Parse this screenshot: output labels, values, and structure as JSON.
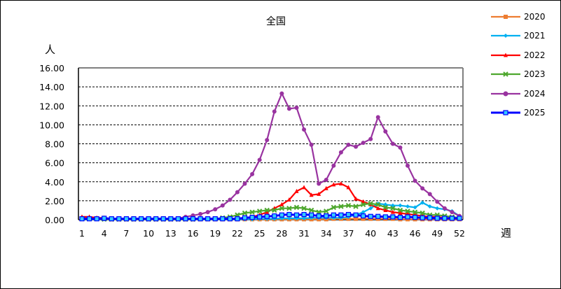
{
  "chart_data": {
    "type": "line",
    "title": "全国",
    "xlabel": "週",
    "ylabel": "人",
    "ylim": [
      0,
      16
    ],
    "yticks": [
      "0.00",
      "2.00",
      "4.00",
      "6.00",
      "8.00",
      "10.00",
      "12.00",
      "14.00",
      "16.00"
    ],
    "xtick_labels": [
      "1",
      "4",
      "7",
      "10",
      "13",
      "16",
      "19",
      "22",
      "25",
      "28",
      "31",
      "34",
      "37",
      "40",
      "43",
      "46",
      "49",
      "52"
    ],
    "grid": "horizontal dashed",
    "legend_position": "right",
    "x": [
      1,
      2,
      3,
      4,
      5,
      6,
      7,
      8,
      9,
      10,
      11,
      12,
      13,
      14,
      15,
      16,
      17,
      18,
      19,
      20,
      21,
      22,
      23,
      24,
      25,
      26,
      27,
      28,
      29,
      30,
      31,
      32,
      33,
      34,
      35,
      36,
      37,
      38,
      39,
      40,
      41,
      42,
      43,
      44,
      45,
      46,
      47,
      48,
      49,
      50,
      51,
      52
    ],
    "series": [
      {
        "name": "2020",
        "color": "#ED7D31",
        "marker": "square",
        "values": [
          0.1,
          0.1,
          0.1,
          0.1,
          0.05,
          0.05,
          0.05,
          0.05,
          0.05,
          0.05,
          0.05,
          0.05,
          0.05,
          0.05,
          0.05,
          0.05,
          0.05,
          0.05,
          0.05,
          0.05,
          0.05,
          0.05,
          0.05,
          0.05,
          0.05,
          0.05,
          0.05,
          0.05,
          0.05,
          0.05,
          0.05,
          0.05,
          0.05,
          0.05,
          0.1,
          0.1,
          0.1,
          0.1,
          0.1,
          0.1,
          0.1,
          0.1,
          0.1,
          0.05,
          0.05,
          0.05,
          0.05,
          0.05,
          0.05,
          0.05,
          0.05,
          0.05
        ]
      },
      {
        "name": "2021",
        "color": "#00B0F0",
        "marker": "diamond",
        "values": [
          0.05,
          0.05,
          0.05,
          0.05,
          0.05,
          0.05,
          0.05,
          0.05,
          0.05,
          0.05,
          0.05,
          0.05,
          0.05,
          0.05,
          0.05,
          0.05,
          0.05,
          0.05,
          0.05,
          0.05,
          0.05,
          0.05,
          0.05,
          0.05,
          0.1,
          0.1,
          0.1,
          0.15,
          0.15,
          0.15,
          0.15,
          0.2,
          0.2,
          0.2,
          0.2,
          0.2,
          0.3,
          0.5,
          0.8,
          1.2,
          1.7,
          1.6,
          1.5,
          1.5,
          1.4,
          1.3,
          1.8,
          1.4,
          1.2,
          1.1,
          0.9,
          0.4
        ]
      },
      {
        "name": "2022",
        "color": "#FF0000",
        "marker": "triangle",
        "values": [
          0.3,
          0.3,
          0.2,
          0.2,
          0.1,
          0.1,
          0.1,
          0.1,
          0.1,
          0.1,
          0.1,
          0.1,
          0.1,
          0.1,
          0.1,
          0.1,
          0.1,
          0.1,
          0.1,
          0.1,
          0.1,
          0.1,
          0.2,
          0.3,
          0.5,
          0.8,
          1.2,
          1.6,
          2.1,
          3.0,
          3.4,
          2.6,
          2.7,
          3.3,
          3.7,
          3.8,
          3.4,
          2.2,
          1.9,
          1.6,
          1.2,
          1.0,
          0.8,
          0.7,
          0.6,
          0.5,
          0.4,
          0.3,
          0.3,
          0.2,
          0.2,
          0.2
        ]
      },
      {
        "name": "2023",
        "color": "#4EA72E",
        "marker": "x",
        "values": [
          0.1,
          0.1,
          0.1,
          0.05,
          0.05,
          0.05,
          0.05,
          0.05,
          0.05,
          0.05,
          0.05,
          0.05,
          0.05,
          0.05,
          0.05,
          0.05,
          0.1,
          0.1,
          0.1,
          0.2,
          0.3,
          0.5,
          0.7,
          0.8,
          0.9,
          1.0,
          1.0,
          1.2,
          1.2,
          1.3,
          1.2,
          1.0,
          0.8,
          0.9,
          1.3,
          1.4,
          1.5,
          1.4,
          1.6,
          1.7,
          1.6,
          1.3,
          1.2,
          1.0,
          0.9,
          0.8,
          0.7,
          0.5,
          0.5,
          0.4,
          0.3,
          0.2
        ]
      },
      {
        "name": "2024",
        "color": "#9933A0",
        "marker": "circle",
        "values": [
          0.1,
          0.1,
          0.1,
          0.1,
          0.1,
          0.1,
          0.1,
          0.1,
          0.1,
          0.1,
          0.1,
          0.1,
          0.1,
          0.15,
          0.3,
          0.45,
          0.6,
          0.8,
          1.1,
          1.5,
          2.1,
          2.9,
          3.8,
          4.8,
          6.3,
          8.4,
          11.4,
          13.3,
          11.7,
          11.8,
          9.5,
          7.9,
          3.8,
          4.2,
          5.7,
          7.1,
          7.9,
          7.7,
          8.1,
          8.5,
          10.8,
          9.3,
          8.0,
          7.6,
          5.7,
          4.1,
          3.3,
          2.7,
          1.9,
          1.2,
          0.8,
          0.4
        ]
      },
      {
        "name": "2025",
        "color": "#0000FF",
        "marker": "square-open",
        "values": [
          0.1,
          0.1,
          0.1,
          0.15,
          0.1,
          0.1,
          0.1,
          0.1,
          0.1,
          0.1,
          0.1,
          0.1,
          0.1,
          0.1,
          0.1,
          0.1,
          0.1,
          0.1,
          0.1,
          0.1,
          0.1,
          0.1,
          0.2,
          0.25,
          0.3,
          0.35,
          0.4,
          0.5,
          0.55,
          0.5,
          0.55,
          0.5,
          0.4,
          0.4,
          0.5,
          0.5,
          0.55,
          0.5,
          0.4,
          0.35,
          0.35,
          0.3,
          0.3,
          0.25,
          0.3,
          0.25,
          0.2,
          0.2,
          0.15,
          0.15,
          0.15,
          0.15
        ]
      }
    ]
  }
}
